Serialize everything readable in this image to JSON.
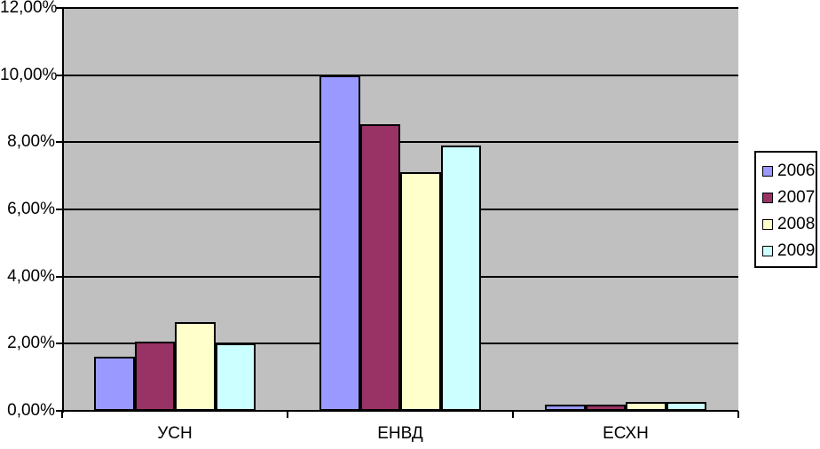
{
  "chart_data": {
    "type": "bar",
    "title": "",
    "xlabel": "",
    "ylabel": "",
    "categories": [
      "УСН",
      "ЕНВД",
      "ЕСХН"
    ],
    "series": [
      {
        "name": "2006",
        "color": "#9999FF",
        "values": [
          1.6,
          10.0,
          0.18
        ]
      },
      {
        "name": "2007",
        "color": "#993366",
        "values": [
          2.05,
          8.55,
          0.18
        ]
      },
      {
        "name": "2008",
        "color": "#FFFFCC",
        "values": [
          2.65,
          7.1,
          0.26
        ]
      },
      {
        "name": "2009",
        "color": "#CCFFFF",
        "values": [
          2.0,
          7.9,
          0.26
        ]
      }
    ],
    "ylim": [
      0,
      12
    ],
    "ytick_step": 2,
    "ytick_labels": [
      "0,00%",
      "2,00%",
      "4,00%",
      "6,00%",
      "8,00%",
      "10,00%",
      "12,00%"
    ],
    "grid": true,
    "legend_position": "right",
    "colors": {
      "plot_background": "#C0C0C0",
      "page_background": "#FFFFFF",
      "gridline": "#000000",
      "axis": "#000000",
      "bar_border": "#000000",
      "text": "#000000"
    }
  }
}
